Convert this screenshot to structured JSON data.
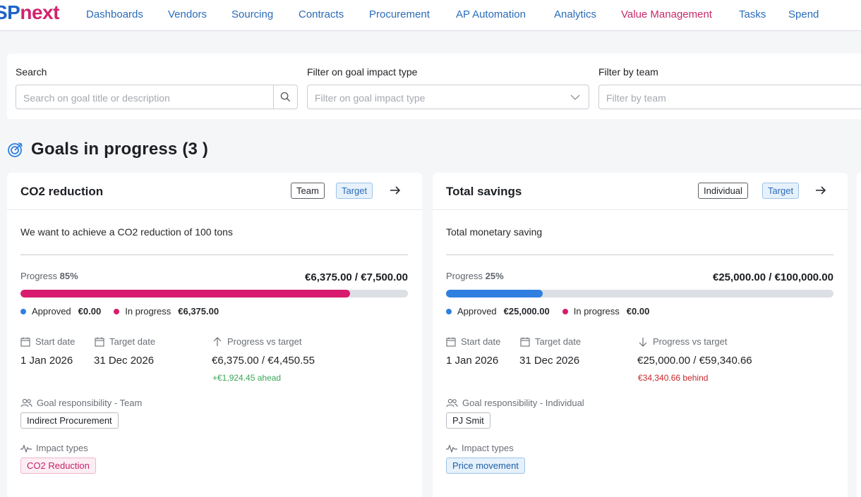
{
  "logo": {
    "part1": "SP",
    "part2": "next"
  },
  "nav": [
    "Dashboards",
    "Vendors",
    "Sourcing",
    "Contracts",
    "Procurement",
    "AP Automation",
    "Analytics",
    "Value Management",
    "Tasks",
    "Spend"
  ],
  "active_nav": "Value Management",
  "filters": {
    "search": {
      "label": "Search",
      "placeholder": "Search on goal title or description",
      "icon": "search-icon"
    },
    "impact": {
      "label": "Filter on goal impact type",
      "placeholder": "Filter on goal impact type",
      "icon": "chevron-down-icon"
    },
    "team": {
      "label": "Filter by team",
      "placeholder": "Filter by team"
    }
  },
  "section": {
    "title": "Goals in progress (3 )",
    "icon": "target-icon"
  },
  "cards": [
    {
      "title": "CO2 reduction",
      "badges": [
        "Team",
        "Target"
      ],
      "description": "We want to achieve a CO2 reduction of 100 tons",
      "progress_label": "Progress",
      "progress_pct": "85%",
      "progress_fraction": 0.85,
      "progress_value": "€6,375.00 / €7,500.00",
      "bar_color": "#d81b6e",
      "legend": [
        {
          "label": "Approved",
          "value": "€0.00",
          "color": "#2f7fe0"
        },
        {
          "label": "In progress",
          "value": "€6,375.00",
          "color": "#d81b6e"
        }
      ],
      "start_label": "Start date",
      "start_value": "1 Jan 2026",
      "target_label": "Target date",
      "target_value": "31 Dec 2026",
      "pvt_label": "Progress vs target",
      "pvt_value": "€6,375.00 / €4,450.55",
      "pvt_delta": "+€1,924.45 ahead",
      "pvt_direction": "up",
      "resp_label": "Goal responsibility - Team",
      "resp_chip": "Indirect Procurement",
      "impact_label": "Impact types",
      "impact_chip": "CO2 Reduction"
    },
    {
      "title": "Total savings",
      "badges": [
        "Individual",
        "Target"
      ],
      "description": "Total monetary saving",
      "progress_label": "Progress",
      "progress_pct": "25%",
      "progress_fraction": 0.25,
      "progress_value": "€25,000.00 / €100,000.00",
      "bar_color": "#2f7fe0",
      "legend": [
        {
          "label": "Approved",
          "value": "€25,000.00",
          "color": "#2f7fe0"
        },
        {
          "label": "In progress",
          "value": "€0.00",
          "color": "#d81b6e"
        }
      ],
      "start_label": "Start date",
      "start_value": "1 Jan 2026",
      "target_label": "Target date",
      "target_value": "31 Dec 2026",
      "pvt_label": "Progress vs target",
      "pvt_value": "€25,000.00 / €59,340.66",
      "pvt_delta": "€34,340.66 behind",
      "pvt_direction": "down",
      "resp_label": "Goal responsibility - Individual",
      "resp_chip": "PJ Smit",
      "impact_label": "Impact types",
      "impact_chip": "Price movement"
    }
  ]
}
